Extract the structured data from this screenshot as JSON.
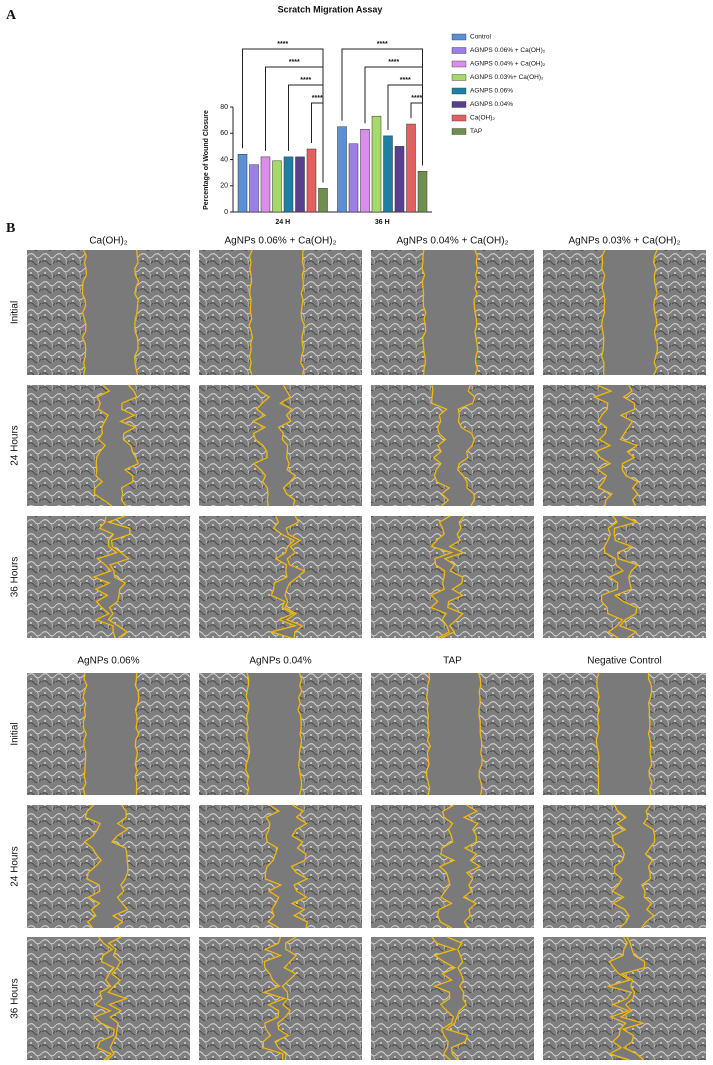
{
  "chart_data": {
    "type": "bar",
    "title": "Scratch Migration Assay",
    "y_label": "Percentage of Wound Closure",
    "categories": [
      "24 H",
      "36 H"
    ],
    "series": [
      {
        "name": "Control",
        "color": "#5b8fd6",
        "values": [
          44,
          65
        ]
      },
      {
        "name": "AGNPS 0.06% + Ca(OH)₂",
        "color": "#9b7fe6",
        "values": [
          36,
          52
        ]
      },
      {
        "name": "AGNPS 0.04% + Ca(OH)₂",
        "color": "#d98ee8",
        "values": [
          42,
          63
        ]
      },
      {
        "name": "AGNPS 0.03%+ Ca(OH)₂",
        "color": "#a6d96a",
        "values": [
          39,
          73
        ]
      },
      {
        "name": "AGNPS 0.06%",
        "color": "#1f7fa3",
        "values": [
          42,
          58
        ]
      },
      {
        "name": "AGNPS 0.04%",
        "color": "#5a3f8f",
        "values": [
          42,
          50
        ]
      },
      {
        "name": "Ca(OH)₂",
        "color": "#e4605e",
        "values": [
          48,
          67
        ]
      },
      {
        "name": "TAP",
        "color": "#6f8f4f",
        "values": [
          18,
          31
        ]
      }
    ],
    "ylim": [
      0,
      80
    ],
    "yticks": [
      0,
      20,
      40,
      60,
      80
    ],
    "annotations": [
      "****",
      "****",
      "****",
      "****",
      "****",
      "****",
      "****",
      "****"
    ]
  },
  "figure": {
    "panel_labels": [
      "A",
      "B"
    ],
    "blocks": [
      {
        "columns": [
          "Ca(OH)₂",
          "AgNPs 0.06% + Ca(OH)₂",
          "AgNPs 0.04% + Ca(OH)₂",
          "AgNPs 0.03% + Ca(OH)₂"
        ],
        "rows": [
          "Initial",
          "24 Hours",
          "36 Hours"
        ]
      },
      {
        "columns": [
          "AgNPs 0.06%",
          "AgNPs 0.04%",
          "TAP",
          "Negative Control"
        ],
        "rows": [
          "Initial",
          "24 Hours",
          "36 Hours"
        ]
      }
    ]
  }
}
